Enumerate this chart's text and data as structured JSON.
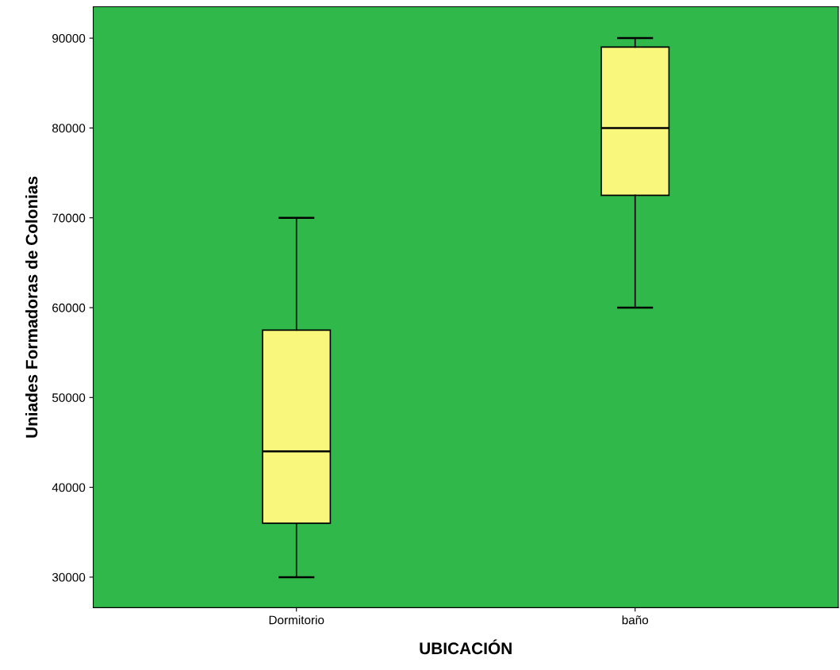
{
  "chart_data": {
    "type": "box",
    "xlabel": "UBICACIÓN",
    "ylabel": "Uniades Formadoras de Colonias",
    "categories": [
      "Dormitorio",
      "baño"
    ],
    "series": [
      {
        "color": "#f9f77c",
        "boxes": [
          {
            "low": 30000,
            "q1": 36000,
            "median": 44000,
            "q3": 57500,
            "high": 70000
          },
          {
            "low": 60000,
            "q1": 72500,
            "median": 80000,
            "q3": 89000,
            "high": 90000
          }
        ]
      }
    ],
    "ylim": [
      26600,
      93500
    ],
    "yticks": [
      30000,
      40000,
      50000,
      60000,
      70000,
      80000,
      90000
    ]
  }
}
